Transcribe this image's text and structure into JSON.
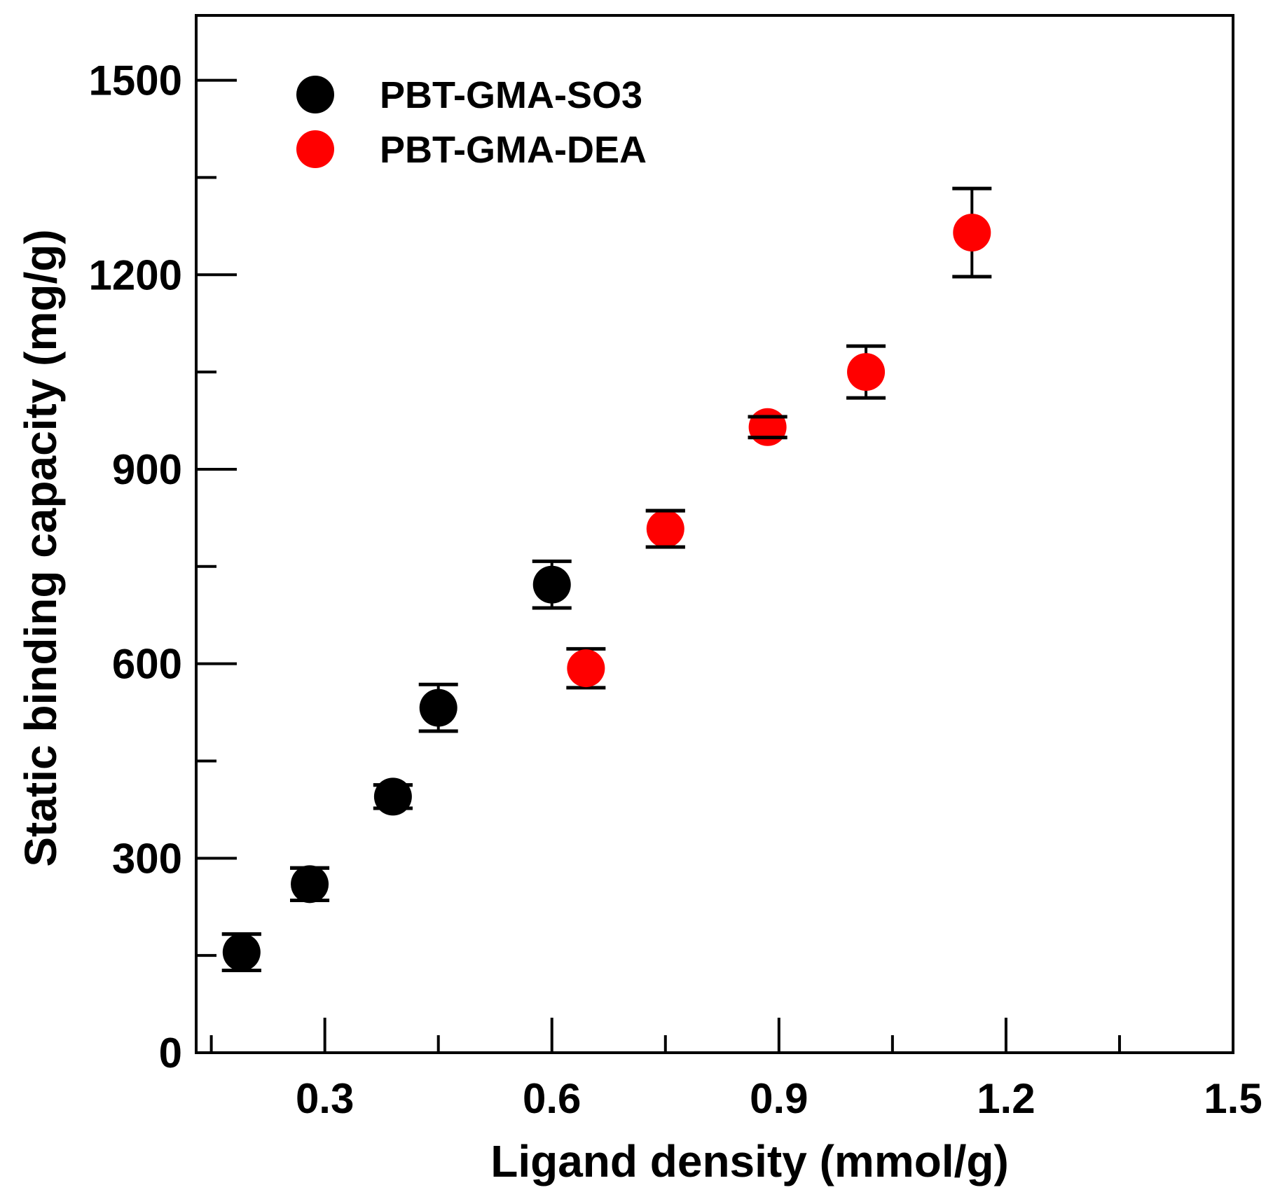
{
  "chart_data": {
    "type": "scatter",
    "title": "",
    "xlabel": "Ligand density (mmol/g)",
    "ylabel": "Static binding capacity  (mg/g)",
    "xlim": [
      0.13,
      1.5
    ],
    "ylim": [
      0,
      1600
    ],
    "x_ticks": [
      0.3,
      0.6,
      0.9,
      1.2,
      1.5
    ],
    "x_tick_labels": [
      "0.3",
      "0.6",
      "0.9",
      "1.2",
      "1.5"
    ],
    "x_minor_ticks": [
      0.15,
      0.45,
      0.75,
      1.05,
      1.35
    ],
    "y_ticks": [
      0,
      300,
      600,
      900,
      1200,
      1500
    ],
    "y_tick_labels": [
      "0",
      "300",
      "600",
      "900",
      "1200",
      "1500"
    ],
    "y_minor_ticks": [
      150,
      450,
      750,
      1050,
      1350
    ],
    "grid": false,
    "legend_position": "top-left",
    "series": [
      {
        "name": "PBT-GMA-SO3",
        "color": "#000000",
        "points": [
          {
            "x": 0.19,
            "y": 155,
            "err": 28
          },
          {
            "x": 0.28,
            "y": 260,
            "err": 25
          },
          {
            "x": 0.39,
            "y": 395,
            "err": 18
          },
          {
            "x": 0.45,
            "y": 532,
            "err": 36
          },
          {
            "x": 0.6,
            "y": 722,
            "err": 36
          }
        ]
      },
      {
        "name": "PBT-GMA-DEA",
        "color": "#ff0000",
        "points": [
          {
            "x": 0.645,
            "y": 593,
            "err": 30
          },
          {
            "x": 0.75,
            "y": 808,
            "err": 28
          },
          {
            "x": 0.885,
            "y": 965,
            "err": 16
          },
          {
            "x": 1.015,
            "y": 1050,
            "err": 40
          },
          {
            "x": 1.155,
            "y": 1265,
            "err": 68
          }
        ]
      }
    ]
  }
}
